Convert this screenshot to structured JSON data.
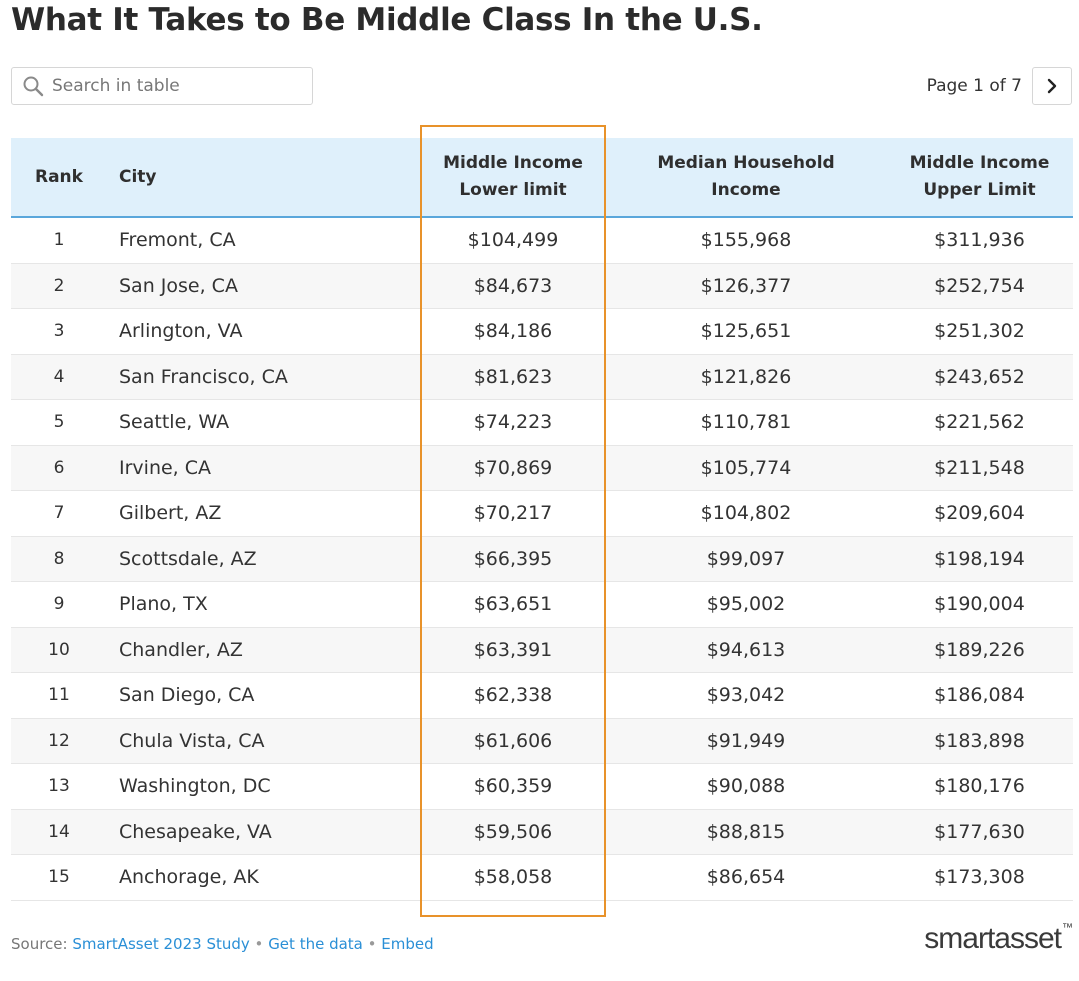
{
  "title": "What It Takes to Be Middle Class In the U.S.",
  "search": {
    "placeholder": "Search in table"
  },
  "pagination": {
    "label": "Page 1 of 7"
  },
  "table": {
    "headers": {
      "rank": "Rank",
      "city": "City",
      "lower_line1": "Middle Income",
      "lower_line2": "Lower limit",
      "median_line1": "Median Household",
      "median_line2": "Income",
      "upper_line1": "Middle Income",
      "upper_line2": "Upper Limit"
    },
    "rows": [
      {
        "rank": "1",
        "city": "Fremont, CA",
        "lower": "$104,499",
        "median": "$155,968",
        "upper": "$311,936"
      },
      {
        "rank": "2",
        "city": "San Jose, CA",
        "lower": "$84,673",
        "median": "$126,377",
        "upper": "$252,754"
      },
      {
        "rank": "3",
        "city": "Arlington, VA",
        "lower": "$84,186",
        "median": "$125,651",
        "upper": "$251,302"
      },
      {
        "rank": "4",
        "city": "San Francisco, CA",
        "lower": "$81,623",
        "median": "$121,826",
        "upper": "$243,652"
      },
      {
        "rank": "5",
        "city": "Seattle, WA",
        "lower": "$74,223",
        "median": "$110,781",
        "upper": "$221,562"
      },
      {
        "rank": "6",
        "city": "Irvine, CA",
        "lower": "$70,869",
        "median": "$105,774",
        "upper": "$211,548"
      },
      {
        "rank": "7",
        "city": "Gilbert, AZ",
        "lower": "$70,217",
        "median": "$104,802",
        "upper": "$209,604"
      },
      {
        "rank": "8",
        "city": "Scottsdale, AZ",
        "lower": "$66,395",
        "median": "$99,097",
        "upper": "$198,194"
      },
      {
        "rank": "9",
        "city": "Plano, TX",
        "lower": "$63,651",
        "median": "$95,002",
        "upper": "$190,004"
      },
      {
        "rank": "10",
        "city": "Chandler, AZ",
        "lower": "$63,391",
        "median": "$94,613",
        "upper": "$189,226"
      },
      {
        "rank": "11",
        "city": "San Diego, CA",
        "lower": "$62,338",
        "median": "$93,042",
        "upper": "$186,084"
      },
      {
        "rank": "12",
        "city": "Chula Vista, CA",
        "lower": "$61,606",
        "median": "$91,949",
        "upper": "$183,898"
      },
      {
        "rank": "13",
        "city": "Washington, DC",
        "lower": "$60,359",
        "median": "$90,088",
        "upper": "$180,176"
      },
      {
        "rank": "14",
        "city": "Chesapeake, VA",
        "lower": "$59,506",
        "median": "$88,815",
        "upper": "$177,630"
      },
      {
        "rank": "15",
        "city": "Anchorage, AK",
        "lower": "$58,058",
        "median": "$86,654",
        "upper": "$173,308"
      }
    ]
  },
  "footer": {
    "source_label": "Source:",
    "study_link": "SmartAsset 2023 Study",
    "data_link": "Get the data",
    "embed_link": "Embed",
    "separator": "•"
  },
  "logo": {
    "text": "smartasset",
    "tm": "™"
  },
  "icons": {
    "search": "search-icon",
    "next": "chevron-right-icon"
  },
  "colors": {
    "header_bg": "#dff0fb",
    "header_border": "#5aa7db",
    "highlight": "#e8922a",
    "link": "#2a8fd6"
  }
}
